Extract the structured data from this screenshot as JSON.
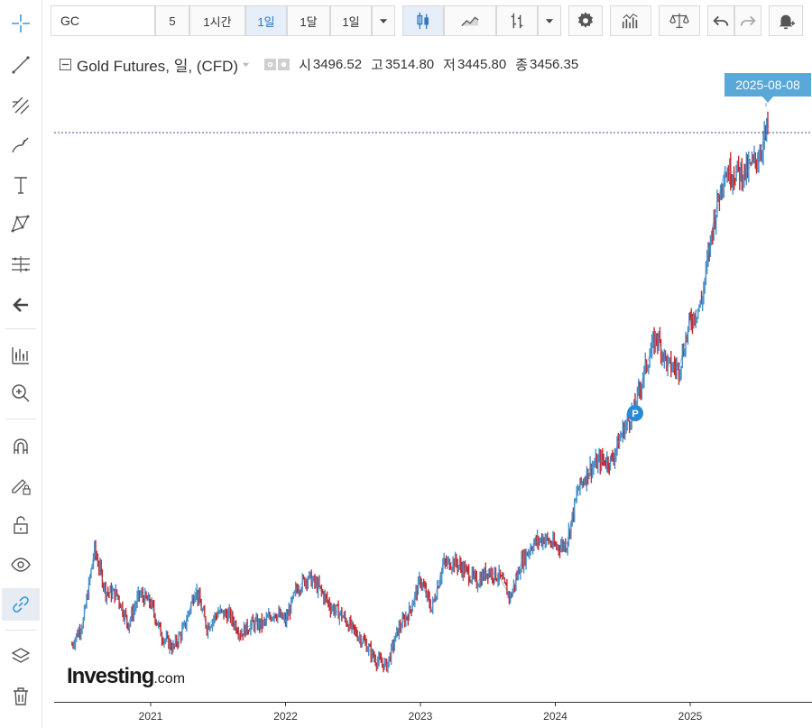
{
  "toolbar": {
    "symbol": "GC",
    "interval_minutes": "5",
    "interval_1h": "1시간",
    "interval_1d": "1일",
    "interval_1mo": "1달",
    "range": "1일"
  },
  "legend": {
    "title": "Gold Futures, 일, (CFD)",
    "open_label": "시",
    "open_value": "3496.52",
    "high_label": "고",
    "high_value": "3514.80",
    "low_label": "저",
    "low_value": "3445.80",
    "close_label": "종",
    "close_value": "3456.35"
  },
  "crosshair_date": "2025-08-08",
  "brand": {
    "name": "Investing",
    "suffix": ".com"
  },
  "marker_label": "P",
  "colors": {
    "up": "#4a90c8",
    "down": "#c8282d",
    "crosshair": "#3c4fa0",
    "badge": "#5aa8d8",
    "marker": "#2a8ad6"
  },
  "icons": [
    "crosshair-icon",
    "trend-line-icon",
    "fibonacci-icon",
    "brush-icon",
    "text-icon",
    "pattern-icon",
    "measure-icon",
    "back-arrow-icon",
    "indicators-icon",
    "zoom-in-icon",
    "magnet-icon",
    "pencil-lock-icon",
    "unlock-icon",
    "eye-icon",
    "link-icon",
    "layers-icon",
    "trash-icon",
    "candles-icon",
    "area-icon",
    "bars-icon",
    "gear-icon",
    "studies-icon",
    "compare-icon",
    "undo-icon",
    "redo-icon",
    "alert-icon"
  ],
  "chart_data": {
    "type": "line",
    "title": "Gold Futures, 일, (CFD)",
    "xlabel": "",
    "ylabel": "",
    "x_ticks": [
      "2021",
      "2022",
      "2023",
      "2024",
      "2025"
    ],
    "x_range": [
      "2020-05",
      "2025-09"
    ],
    "y_range": [
      1600,
      3600
    ],
    "grid": false,
    "crosshair": {
      "x": "2025-08-08",
      "y": 3514.8
    },
    "series": [
      {
        "values": [
          {
            "x": "2020-06",
            "y": 1710
          },
          {
            "x": "2020-07",
            "y": 1790
          },
          {
            "x": "2020-08",
            "y": 2030
          },
          {
            "x": "2020-09",
            "y": 1890
          },
          {
            "x": "2020-10",
            "y": 1880
          },
          {
            "x": "2020-11",
            "y": 1780
          },
          {
            "x": "2020-12",
            "y": 1880
          },
          {
            "x": "2021-01",
            "y": 1850
          },
          {
            "x": "2021-02",
            "y": 1740
          },
          {
            "x": "2021-03",
            "y": 1700
          },
          {
            "x": "2021-04",
            "y": 1770
          },
          {
            "x": "2021-05",
            "y": 1900
          },
          {
            "x": "2021-06",
            "y": 1770
          },
          {
            "x": "2021-07",
            "y": 1820
          },
          {
            "x": "2021-08",
            "y": 1810
          },
          {
            "x": "2021-09",
            "y": 1750
          },
          {
            "x": "2021-10",
            "y": 1780
          },
          {
            "x": "2021-11",
            "y": 1780
          },
          {
            "x": "2021-12",
            "y": 1820
          },
          {
            "x": "2022-01",
            "y": 1790
          },
          {
            "x": "2022-02",
            "y": 1900
          },
          {
            "x": "2022-03",
            "y": 1940
          },
          {
            "x": "2022-04",
            "y": 1900
          },
          {
            "x": "2022-05",
            "y": 1840
          },
          {
            "x": "2022-06",
            "y": 1810
          },
          {
            "x": "2022-07",
            "y": 1760
          },
          {
            "x": "2022-08",
            "y": 1720
          },
          {
            "x": "2022-09",
            "y": 1660
          },
          {
            "x": "2022-10",
            "y": 1640
          },
          {
            "x": "2022-11",
            "y": 1760
          },
          {
            "x": "2022-12",
            "y": 1820
          },
          {
            "x": "2023-01",
            "y": 1930
          },
          {
            "x": "2023-02",
            "y": 1830
          },
          {
            "x": "2023-03",
            "y": 1980
          },
          {
            "x": "2023-04",
            "y": 1990
          },
          {
            "x": "2023-05",
            "y": 1960
          },
          {
            "x": "2023-06",
            "y": 1920
          },
          {
            "x": "2023-07",
            "y": 1960
          },
          {
            "x": "2023-08",
            "y": 1940
          },
          {
            "x": "2023-09",
            "y": 1870
          },
          {
            "x": "2023-10",
            "y": 1990
          },
          {
            "x": "2023-11",
            "y": 2050
          },
          {
            "x": "2023-12",
            "y": 2070
          },
          {
            "x": "2024-01",
            "y": 2040
          },
          {
            "x": "2024-02",
            "y": 2050
          },
          {
            "x": "2024-03",
            "y": 2230
          },
          {
            "x": "2024-04",
            "y": 2300
          },
          {
            "x": "2024-05",
            "y": 2330
          },
          {
            "x": "2024-06",
            "y": 2330
          },
          {
            "x": "2024-07",
            "y": 2430
          },
          {
            "x": "2024-08",
            "y": 2500
          },
          {
            "x": "2024-09",
            "y": 2640
          },
          {
            "x": "2024-10",
            "y": 2750
          },
          {
            "x": "2024-11",
            "y": 2650
          },
          {
            "x": "2024-12",
            "y": 2640
          },
          {
            "x": "2025-01",
            "y": 2800
          },
          {
            "x": "2025-02",
            "y": 2860
          },
          {
            "x": "2025-03",
            "y": 3120
          },
          {
            "x": "2025-04",
            "y": 3300
          },
          {
            "x": "2025-05",
            "y": 3300
          },
          {
            "x": "2025-06",
            "y": 3300
          },
          {
            "x": "2025-07",
            "y": 3350
          },
          {
            "x": "2025-08",
            "y": 3456
          }
        ]
      }
    ]
  }
}
